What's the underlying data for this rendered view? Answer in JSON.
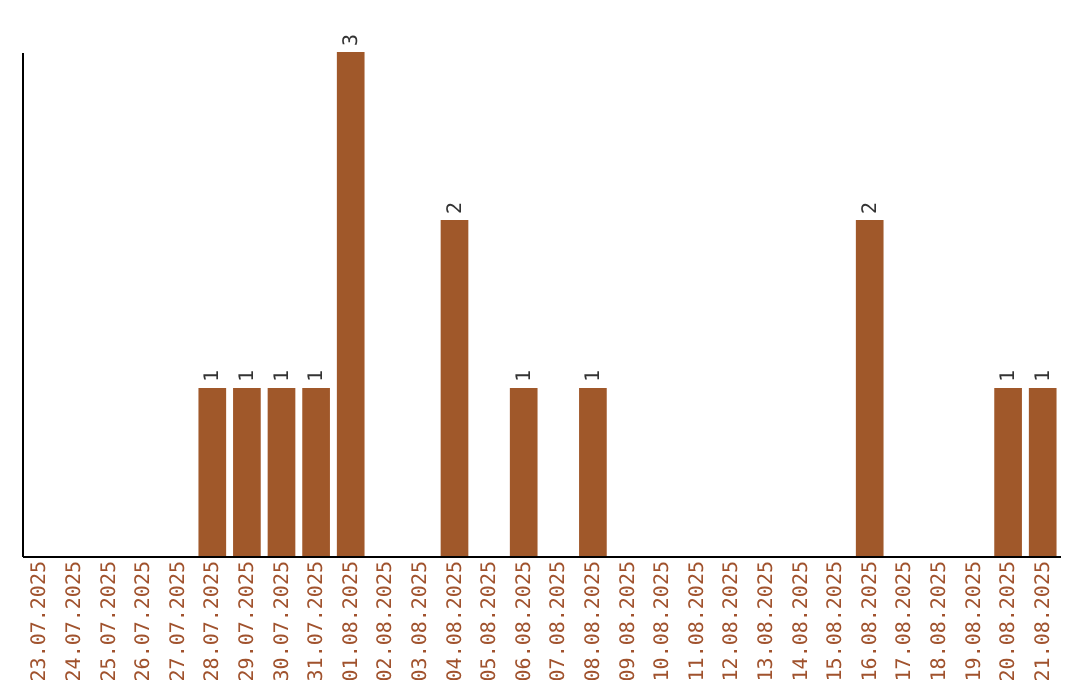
{
  "chart_data": {
    "type": "bar",
    "categories": [
      "23.07.2025",
      "24.07.2025",
      "25.07.2025",
      "26.07.2025",
      "27.07.2025",
      "28.07.2025",
      "29.07.2025",
      "30.07.2025",
      "31.07.2025",
      "01.08.2025",
      "02.08.2025",
      "03.08.2025",
      "04.08.2025",
      "05.08.2025",
      "06.08.2025",
      "07.08.2025",
      "08.08.2025",
      "09.08.2025",
      "10.08.2025",
      "11.08.2025",
      "12.08.2025",
      "13.08.2025",
      "14.08.2025",
      "15.08.2025",
      "16.08.2025",
      "17.08.2025",
      "18.08.2025",
      "19.08.2025",
      "20.08.2025",
      "21.08.2025"
    ],
    "values": [
      null,
      null,
      null,
      null,
      null,
      1,
      1,
      1,
      1,
      3,
      null,
      null,
      2,
      null,
      1,
      null,
      1,
      null,
      null,
      null,
      null,
      null,
      null,
      null,
      2,
      null,
      null,
      null,
      1,
      1
    ],
    "color": "#a0582a",
    "data_labels": true,
    "tick_labels": "x",
    "grid": false
  }
}
